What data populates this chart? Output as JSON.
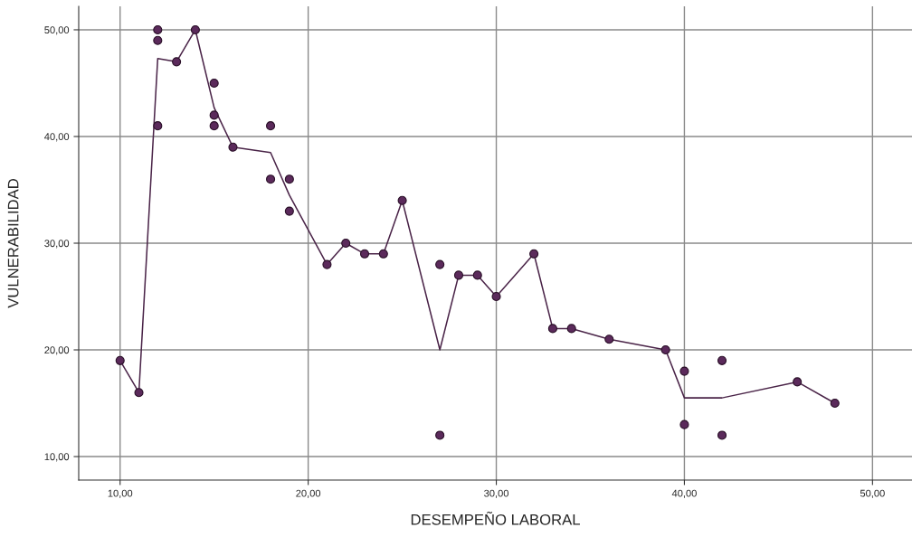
{
  "chart_data": {
    "type": "scatter",
    "xlabel": "DESEMPEÑO LABORAL",
    "ylabel": "VULNERABILIDAD",
    "series": [
      {
        "color": "#5b2a5b",
        "marker": "circle",
        "x": [
          10,
          11,
          12,
          12,
          12,
          13,
          14,
          15,
          15,
          15,
          16,
          18,
          18,
          19,
          19,
          21,
          22,
          23,
          24,
          25,
          27,
          27,
          28,
          29,
          30,
          32,
          33,
          34,
          36,
          39,
          40,
          40,
          42,
          42,
          46,
          48
        ],
        "values": [
          19,
          16,
          50,
          49,
          41,
          47,
          50,
          45,
          42,
          41,
          39,
          41,
          36,
          36,
          33,
          28,
          30,
          29,
          29,
          34,
          28,
          12,
          27,
          27,
          25,
          29,
          22,
          22,
          21,
          20,
          18,
          13,
          19,
          12,
          17,
          15
        ]
      },
      {
        "type": "line",
        "color": "#4a2448",
        "marker": "none",
        "x": [
          10,
          11,
          12,
          13,
          14,
          15,
          16,
          18,
          19,
          21,
          22,
          23,
          24,
          25,
          27,
          28,
          29,
          30,
          32,
          33,
          34,
          36,
          39,
          40,
          42,
          46,
          48
        ],
        "values": [
          19,
          16,
          47.3,
          47,
          50,
          42.7,
          39,
          38.5,
          34.5,
          28,
          30,
          29,
          29,
          34,
          20,
          27,
          27,
          25,
          29,
          22,
          22,
          21,
          20,
          15.5,
          15.5,
          17,
          15
        ]
      }
    ],
    "xlim": [
      7.8,
      52.1
    ],
    "ylim": [
      7.8,
      52.2
    ],
    "xticks": [
      {
        "value": 10,
        "label": "10,00"
      },
      {
        "value": 20,
        "label": "20,00"
      },
      {
        "value": 30,
        "label": "30,00"
      },
      {
        "value": 40,
        "label": "40,00"
      },
      {
        "value": 50,
        "label": "50,00"
      }
    ],
    "yticks": [
      {
        "value": 10,
        "label": "10,00"
      },
      {
        "value": 20,
        "label": "20,00"
      },
      {
        "value": 30,
        "label": "30,00"
      },
      {
        "value": 40,
        "label": "40,00"
      },
      {
        "value": 50,
        "label": "50,00"
      }
    ],
    "grid": true
  }
}
